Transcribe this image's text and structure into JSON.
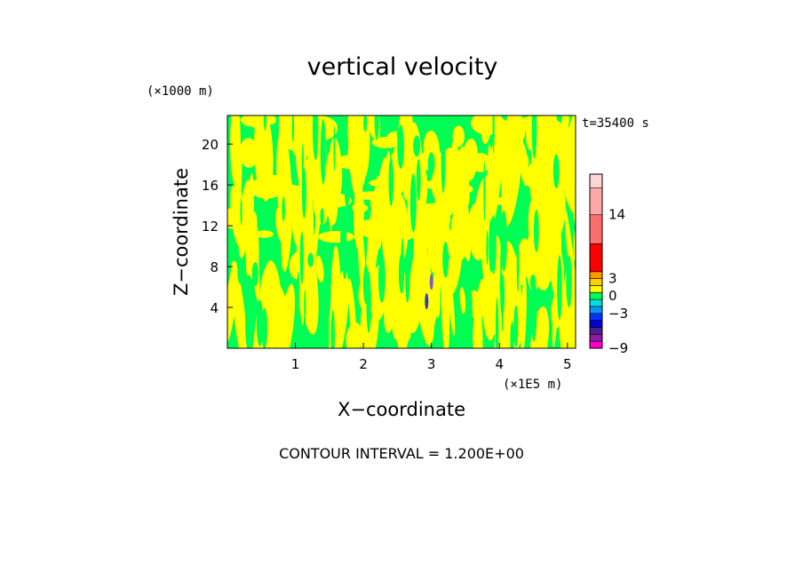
{
  "chart_data": {
    "type": "heatmap",
    "title": "vertical velocity",
    "xlabel": "X−coordinate",
    "ylabel": "Z−coordinate",
    "x_unit": "(×1E5 m)",
    "y_unit": "(×1000 m)",
    "time_label": "t=35400 s",
    "xlim": [
      0,
      5.12
    ],
    "ylim": [
      0,
      22.8
    ],
    "x_ticks": [
      1,
      2,
      3,
      4,
      5
    ],
    "y_ticks": [
      4,
      8,
      12,
      16,
      20
    ],
    "x_tick_labels": [
      "1",
      "2",
      "3",
      "4",
      "5"
    ],
    "y_tick_labels": [
      "4",
      "8",
      "12",
      "16",
      "20"
    ],
    "contour_interval_text": "CONTOUR INTERVAL = 1.200E+00",
    "background_color": "#00ff55",
    "field_colors": [
      "#ffff00",
      "#00ff55"
    ],
    "features": [
      {
        "name": "negative-core",
        "x": 2.93,
        "z": 4.6,
        "color": "#2a3cc8"
      },
      {
        "name": "positive-core",
        "x": 3.0,
        "z": 6.5,
        "color": "#7f5fc0"
      }
    ],
    "colorbar": {
      "min": -9,
      "max": 21,
      "levels": [
        -9,
        -7.8,
        -6.6,
        -5.4,
        -4.2,
        -3.0,
        -1.8,
        -0.6,
        0.6,
        1.8,
        3.0,
        4.2,
        9.0,
        14.0,
        18.6,
        21.0
      ],
      "colors": [
        "#ff00cc",
        "#8e1aa6",
        "#4d1f90",
        "#0000d8",
        "#0033ff",
        "#0099ff",
        "#00e0e0",
        "#00ff55",
        "#ffff00",
        "#ffd000",
        "#ff9900",
        "#ff0000",
        "#ff6e6e",
        "#ffa8a8",
        "#ffd4d4"
      ],
      "tick_values": [
        -9,
        -3,
        0,
        3,
        14
      ],
      "tick_labels": [
        "−9",
        "−3",
        "0",
        "3",
        "14"
      ]
    }
  }
}
